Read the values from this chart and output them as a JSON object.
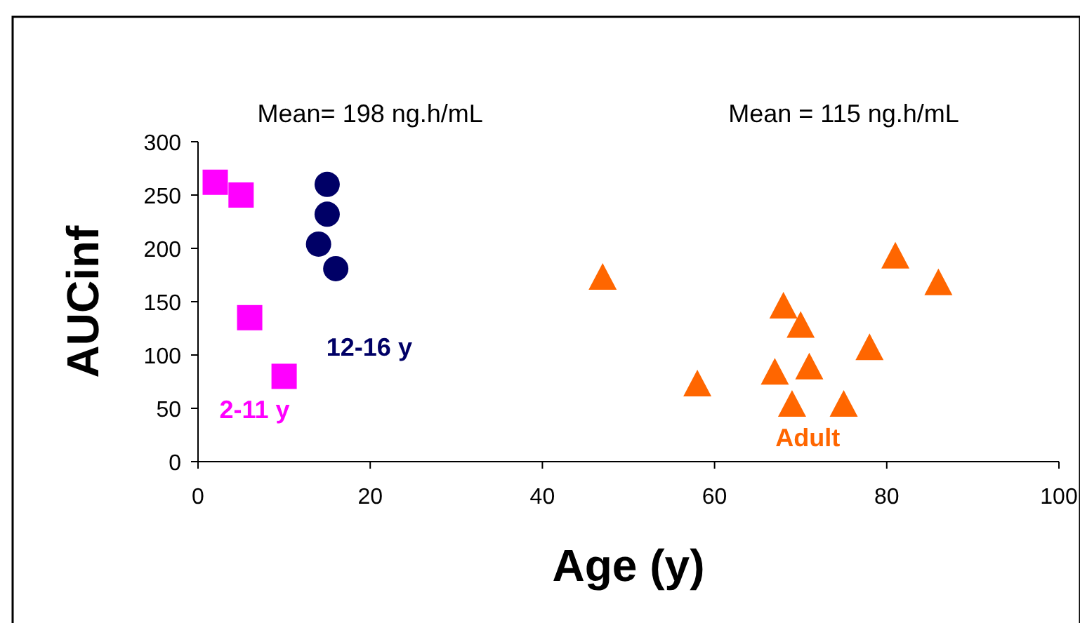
{
  "chart_data": {
    "type": "scatter",
    "xlabel": "Age (y)",
    "ylabel": "AUCinf",
    "annotations": [
      "Mean= 198 ng.h/mL",
      "Mean = 115 ng.h/mL"
    ],
    "xlim": [
      0,
      100
    ],
    "xticks": [
      0,
      20,
      40,
      60,
      80,
      100
    ],
    "ylim": [
      0,
      300
    ],
    "yticks": [
      0,
      50,
      100,
      150,
      200,
      250,
      300
    ],
    "grid": false,
    "legend": false,
    "series": [
      {
        "name": "2-11 y",
        "color": "#ff00ff",
        "marker": "square",
        "x": [
          2,
          5,
          6,
          10
        ],
        "values": [
          262,
          250,
          135,
          80
        ]
      },
      {
        "name": "12-16 y",
        "color": "#000066",
        "marker": "circle",
        "x": [
          15,
          15,
          14,
          16
        ],
        "values": [
          260,
          232,
          204,
          181
        ]
      },
      {
        "name": "Adult",
        "color": "#ff6600",
        "marker": "triangle",
        "x": [
          47,
          58,
          67,
          68,
          69,
          70,
          71,
          75,
          78,
          81,
          86
        ],
        "values": [
          173,
          73,
          84,
          146,
          54,
          128,
          89,
          54,
          107,
          193,
          168
        ]
      }
    ]
  }
}
